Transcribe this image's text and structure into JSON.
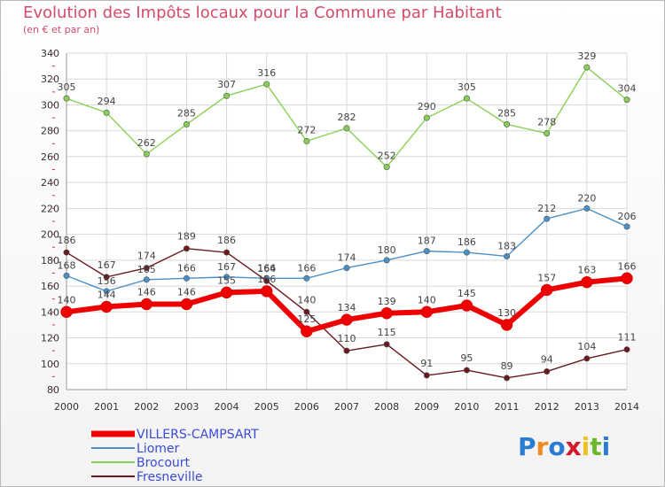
{
  "title": "Evolution des Impôts locaux pour la Commune par Habitant",
  "subtitle": "(en € et par an)",
  "logo": {
    "text": "Proxiti",
    "letter_colors": [
      "#2a7bd4",
      "#f08a1c",
      "#2a7bd4",
      "#d41a2a",
      "#f0c01c",
      "#6cb82a",
      "#2a7bd4"
    ]
  },
  "chart_data": {
    "type": "line",
    "title": "Evolution des Impôts locaux pour la Commune par Habitant",
    "subtitle": "(en € et par an)",
    "x": [
      "2000",
      "2001",
      "2002",
      "2003",
      "2004",
      "2005",
      "2006",
      "2007",
      "2008",
      "2009",
      "2010",
      "2011",
      "2012",
      "2013",
      "2014"
    ],
    "ylim": [
      80,
      340
    ],
    "yticks": [
      80,
      100,
      120,
      140,
      160,
      180,
      200,
      220,
      240,
      260,
      280,
      300,
      320,
      340
    ],
    "grid": true,
    "legend_position": "bottom-left",
    "series": [
      {
        "name": "VILLERS-CAMPSART",
        "color": "#ee0000",
        "values": [
          140,
          144,
          146,
          146,
          155,
          156,
          125,
          134,
          139,
          140,
          145,
          130,
          157,
          163,
          166
        ]
      },
      {
        "name": "Liomer",
        "color": "#4a90c8",
        "values": [
          168,
          156,
          165,
          166,
          167,
          166,
          166,
          174,
          180,
          187,
          186,
          183,
          212,
          220,
          206
        ]
      },
      {
        "name": "Brocourt",
        "color": "#88d055",
        "values": [
          305,
          294,
          262,
          285,
          307,
          316,
          272,
          282,
          252,
          290,
          305,
          285,
          278,
          329,
          304
        ]
      },
      {
        "name": "Fresneville",
        "color": "#6a1a1e",
        "values": [
          186,
          167,
          174,
          189,
          186,
          164,
          140,
          110,
          115,
          91,
          95,
          89,
          94,
          104,
          111
        ]
      }
    ],
    "data_labels": [
      [
        140,
        144,
        146,
        146,
        155,
        156,
        125,
        134,
        139,
        140,
        145,
        130,
        157,
        163,
        166
      ],
      [
        168,
        156,
        165,
        166,
        167,
        166,
        166,
        174,
        180,
        187,
        186,
        183,
        212,
        220,
        206
      ],
      [
        305,
        294,
        262,
        285,
        307,
        316,
        272,
        282,
        252,
        290,
        305,
        285,
        278,
        329,
        304
      ],
      [
        186,
        167,
        174,
        189,
        186,
        164,
        140,
        110,
        115,
        91,
        95,
        89,
        94,
        104,
        111
      ]
    ]
  }
}
